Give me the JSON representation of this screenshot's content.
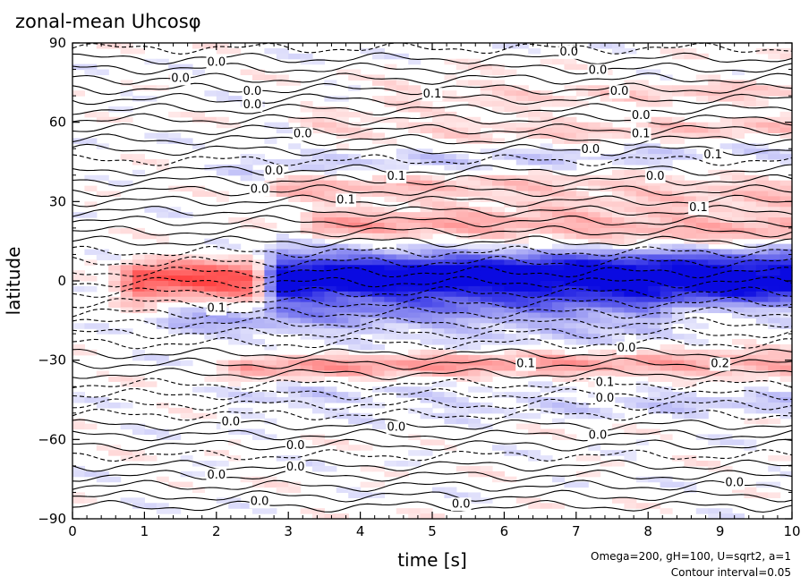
{
  "chart_data": {
    "type": "heatmap",
    "title": "zonal-mean Uhcosφ",
    "xlabel": "time [s]",
    "ylabel": "latitude",
    "xlim": [
      0,
      10
    ],
    "ylim": [
      -90,
      90
    ],
    "x_ticks": [
      0,
      1,
      2,
      3,
      4,
      5,
      6,
      7,
      8,
      9,
      10
    ],
    "x_tick_labels": [
      "0",
      "1",
      "2",
      "3",
      "4",
      "5",
      "6",
      "7",
      "8",
      "9",
      "10"
    ],
    "y_ticks": [
      -90,
      -60,
      -30,
      0,
      30,
      60,
      90
    ],
    "y_tick_labels": [
      "−90",
      "−60",
      "−30",
      "0",
      "30",
      "60",
      "90"
    ],
    "colors": {
      "positive": "#e03030",
      "negative": "#1010e0",
      "background": "#ffffff"
    },
    "contour_interval": 0.05,
    "bands": [
      {
        "lat": 0,
        "t_start": 0.5,
        "t_end": 2.5,
        "value": 0.25,
        "width": 7
      },
      {
        "lat": 1,
        "t_start": 2.5,
        "t_end": 10,
        "value": -0.35,
        "width": 10
      },
      {
        "lat": 20,
        "t_start": 3,
        "t_end": 10,
        "value": 0.12,
        "width": 6
      },
      {
        "lat": -32,
        "t_start": 2,
        "t_end": 10,
        "value": 0.12,
        "width": 5
      },
      {
        "lat": 35,
        "t_start": 2.5,
        "t_end": 10,
        "value": 0.08,
        "width": 7
      },
      {
        "lat": 45,
        "t_start": 2,
        "t_end": 10,
        "value": -0.05,
        "width": 6
      },
      {
        "lat": 58,
        "t_start": 3,
        "t_end": 10,
        "value": 0.06,
        "width": 5
      },
      {
        "lat": 72,
        "t_start": 4,
        "t_end": 10,
        "value": 0.05,
        "width": 5
      },
      {
        "lat": -15,
        "t_start": 1,
        "t_end": 8,
        "value": -0.08,
        "width": 8
      },
      {
        "lat": -45,
        "t_start": 2,
        "t_end": 10,
        "value": -0.05,
        "width": 6
      }
    ],
    "contour_labels": [
      {
        "t": 6.9,
        "lat": 87,
        "text": "0.0"
      },
      {
        "t": 2.0,
        "lat": 83,
        "text": "0.0"
      },
      {
        "t": 7.3,
        "lat": 80,
        "text": "0.0"
      },
      {
        "t": 1.5,
        "lat": 77,
        "text": "0.0"
      },
      {
        "t": 2.5,
        "lat": 72,
        "text": "0.0"
      },
      {
        "t": 7.6,
        "lat": 72,
        "text": "0.0"
      },
      {
        "t": 5.0,
        "lat": 71,
        "text": "0.1"
      },
      {
        "t": 2.5,
        "lat": 67,
        "text": "0.0"
      },
      {
        "t": 7.9,
        "lat": 63,
        "text": "0.0"
      },
      {
        "t": 3.2,
        "lat": 56,
        "text": "0.0"
      },
      {
        "t": 7.9,
        "lat": 56,
        "text": "0.1"
      },
      {
        "t": 7.2,
        "lat": 50,
        "text": "0.0"
      },
      {
        "t": 8.9,
        "lat": 48,
        "text": "0.1"
      },
      {
        "t": 2.8,
        "lat": 42,
        "text": "0.0"
      },
      {
        "t": 4.5,
        "lat": 40,
        "text": "0.1"
      },
      {
        "t": 8.1,
        "lat": 40,
        "text": "0.0"
      },
      {
        "t": 2.6,
        "lat": 35,
        "text": "0.0"
      },
      {
        "t": 3.8,
        "lat": 31,
        "text": "0.1"
      },
      {
        "t": 8.7,
        "lat": 28,
        "text": "0.1"
      },
      {
        "t": 2.0,
        "lat": -10,
        "text": "0.1"
      },
      {
        "t": 7.7,
        "lat": -25,
        "text": "0.0"
      },
      {
        "t": 6.3,
        "lat": -31,
        "text": "0.1"
      },
      {
        "t": 9.0,
        "lat": -31,
        "text": "0.2"
      },
      {
        "t": 7.4,
        "lat": -38,
        "text": "0.1"
      },
      {
        "t": 7.4,
        "lat": -44,
        "text": "0.0"
      },
      {
        "t": 2.2,
        "lat": -53,
        "text": "0.0"
      },
      {
        "t": 4.5,
        "lat": -55,
        "text": "0.0"
      },
      {
        "t": 7.3,
        "lat": -58,
        "text": "0.0"
      },
      {
        "t": 3.1,
        "lat": -62,
        "text": "0.0"
      },
      {
        "t": 3.1,
        "lat": -70,
        "text": "0.0"
      },
      {
        "t": 2.0,
        "lat": -73,
        "text": "0.0"
      },
      {
        "t": 9.2,
        "lat": -76,
        "text": "0.0"
      },
      {
        "t": 2.6,
        "lat": -83,
        "text": "0.0"
      },
      {
        "t": 5.4,
        "lat": -84,
        "text": "0.0"
      }
    ]
  },
  "notes": {
    "params": "Omega=200, gH=100, U=sqrt2, a=1",
    "contour_interval_text": "Contour interval=0.05"
  }
}
